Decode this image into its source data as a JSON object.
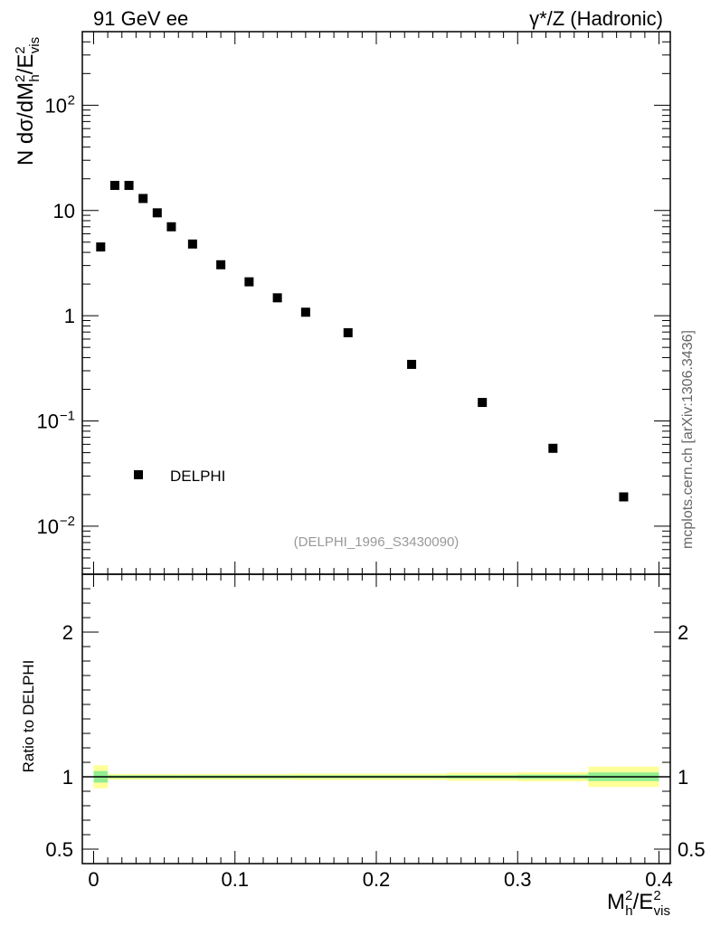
{
  "header": {
    "left": "91 GeV ee",
    "right": "γ*/Z (Hadronic)"
  },
  "watermark": "mcplots.cern.ch [arXiv:1306.3436]",
  "analysis_tag": "(DELPHI_1996_S3430090)",
  "colors": {
    "marker": "#000000",
    "band_inner": "#90ee90",
    "band_outer": "#ffff99",
    "analysis_tag": "#999999",
    "watermark": "#666666"
  },
  "chart_data": [
    {
      "type": "scatter",
      "ylabel": "N dσ/dM²h/E²vis",
      "y_scale": "log",
      "ylim": [
        0.0035,
        500
      ],
      "xlim": [
        -0.008,
        0.408
      ],
      "legend": {
        "position": "bottom-left",
        "entries": [
          "DELPHI"
        ]
      },
      "y_tick_labels": [
        {
          "value": 0.01,
          "base": "10",
          "exp": "−2"
        },
        {
          "value": 0.1,
          "base": "10",
          "exp": "−1"
        },
        {
          "value": 1,
          "base": "1",
          "exp": ""
        },
        {
          "value": 10,
          "base": "10",
          "exp": ""
        },
        {
          "value": 100,
          "base": "10",
          "exp": "2"
        }
      ],
      "series": [
        {
          "name": "DELPHI",
          "x": [
            0.005,
            0.015,
            0.025,
            0.035,
            0.045,
            0.055,
            0.07,
            0.09,
            0.11,
            0.13,
            0.15,
            0.18,
            0.225,
            0.275,
            0.325,
            0.375
          ],
          "y": [
            4.5,
            17.3,
            17.3,
            13.0,
            9.5,
            7.0,
            4.8,
            3.05,
            2.1,
            1.48,
            1.08,
            0.69,
            0.345,
            0.15,
            0.055,
            0.019
          ]
        }
      ]
    },
    {
      "type": "area",
      "ylabel": "Ratio to DELPHI",
      "ylim": [
        0.4,
        2.4
      ],
      "xlim": [
        -0.008,
        0.408
      ],
      "xlabel": "M²h/E²vis",
      "reference": 1,
      "y_tick_labels": [
        {
          "value": 0.5,
          "label": "0.5"
        },
        {
          "value": 1,
          "label": "1"
        },
        {
          "value": 2,
          "label": "2"
        }
      ],
      "x_tick_labels": [
        {
          "value": 0,
          "label": "0"
        },
        {
          "value": 0.1,
          "label": "0.1"
        },
        {
          "value": 0.2,
          "label": "0.2"
        },
        {
          "value": 0.3,
          "label": "0.3"
        },
        {
          "value": 0.4,
          "label": "0.4"
        }
      ],
      "bins": [
        {
          "lo": 0.0,
          "hi": 0.01,
          "inner": [
            0.96,
            1.04
          ],
          "outer": [
            0.92,
            1.08
          ]
        },
        {
          "lo": 0.01,
          "hi": 0.02,
          "inner": [
            0.99,
            1.01
          ],
          "outer": [
            0.98,
            1.02
          ]
        },
        {
          "lo": 0.02,
          "hi": 0.03,
          "inner": [
            0.99,
            1.01
          ],
          "outer": [
            0.98,
            1.02
          ]
        },
        {
          "lo": 0.03,
          "hi": 0.04,
          "inner": [
            0.99,
            1.01
          ],
          "outer": [
            0.98,
            1.02
          ]
        },
        {
          "lo": 0.04,
          "hi": 0.05,
          "inner": [
            0.99,
            1.01
          ],
          "outer": [
            0.98,
            1.02
          ]
        },
        {
          "lo": 0.05,
          "hi": 0.06,
          "inner": [
            0.99,
            1.01
          ],
          "outer": [
            0.98,
            1.02
          ]
        },
        {
          "lo": 0.06,
          "hi": 0.08,
          "inner": [
            0.99,
            1.01
          ],
          "outer": [
            0.98,
            1.02
          ]
        },
        {
          "lo": 0.08,
          "hi": 0.1,
          "inner": [
            0.99,
            1.01
          ],
          "outer": [
            0.98,
            1.02
          ]
        },
        {
          "lo": 0.1,
          "hi": 0.12,
          "inner": [
            0.99,
            1.01
          ],
          "outer": [
            0.98,
            1.02
          ]
        },
        {
          "lo": 0.12,
          "hi": 0.14,
          "inner": [
            0.99,
            1.01
          ],
          "outer": [
            0.98,
            1.02
          ]
        },
        {
          "lo": 0.14,
          "hi": 0.16,
          "inner": [
            0.99,
            1.01
          ],
          "outer": [
            0.978,
            1.022
          ]
        },
        {
          "lo": 0.16,
          "hi": 0.2,
          "inner": [
            0.99,
            1.01
          ],
          "outer": [
            0.978,
            1.022
          ]
        },
        {
          "lo": 0.2,
          "hi": 0.25,
          "inner": [
            0.99,
            1.01
          ],
          "outer": [
            0.978,
            1.022
          ]
        },
        {
          "lo": 0.25,
          "hi": 0.3,
          "inner": [
            0.988,
            1.012
          ],
          "outer": [
            0.972,
            1.028
          ]
        },
        {
          "lo": 0.3,
          "hi": 0.35,
          "inner": [
            0.985,
            1.015
          ],
          "outer": [
            0.968,
            1.032
          ]
        },
        {
          "lo": 0.35,
          "hi": 0.4,
          "inner": [
            0.97,
            1.03
          ],
          "outer": [
            0.93,
            1.07
          ]
        }
      ]
    }
  ]
}
